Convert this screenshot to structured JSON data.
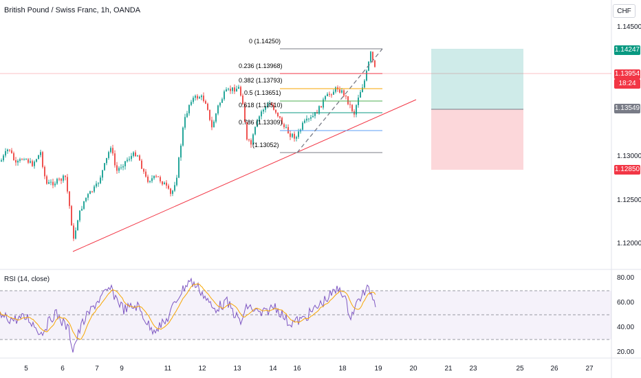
{
  "header": {
    "symbol_title": "British Pound / Swiss Franc, 1h, OANDA",
    "currency": "CHF"
  },
  "price_axis": {
    "ticks": [
      "1.14500",
      "1.13000",
      "1.12500",
      "1.12000"
    ]
  },
  "price_tags": {
    "target": {
      "value": "1.14247",
      "color": "#089981"
    },
    "current": {
      "value": "1.13954",
      "countdown": "18:24",
      "color": "#f23645"
    },
    "entry": {
      "value": "1.13549",
      "color": "#787b86"
    },
    "stop": {
      "value": "1.12850",
      "color": "#f23645"
    }
  },
  "fibonacci": {
    "levels": [
      {
        "label": "0 (1.14250)",
        "color": "#787b86"
      },
      {
        "label": "0.236 (1.13968)",
        "color": "#f23645"
      },
      {
        "label": "0.382 (1.13793)",
        "color": "#f7a600"
      },
      {
        "label": "0.5 (1.13651)",
        "color": "#4caf50"
      },
      {
        "label": "0.618 (1.13510)",
        "color": "#089981"
      },
      {
        "label": "0.786 (1.13309)",
        "color": "#5b9cf6"
      },
      {
        "label": "(1.13052)",
        "color": "#787b86"
      }
    ]
  },
  "rsi": {
    "title": "RSI (14, close)",
    "ticks": [
      "80.00",
      "60.00",
      "40.00",
      "20.00"
    ]
  },
  "time_axis": {
    "labels": [
      "5",
      "6",
      "7",
      "9",
      "11",
      "12",
      "13",
      "14",
      "16",
      "18",
      "19",
      "20",
      "21",
      "23",
      "25",
      "26",
      "27"
    ]
  },
  "colors": {
    "up": "#26a69a",
    "down": "#ef5350",
    "trendline": "#f23645",
    "rsi_line": "#7e57c2",
    "rsi_ma": "#f7a600",
    "rsi_band": "#7e57c2"
  }
}
